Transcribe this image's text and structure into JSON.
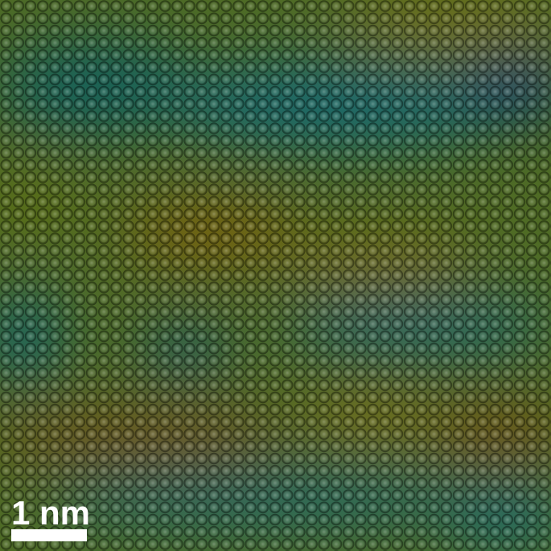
{
  "scale_bar": {
    "label": "1 nm"
  }
}
